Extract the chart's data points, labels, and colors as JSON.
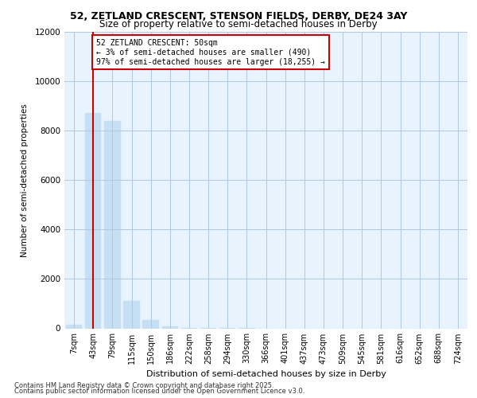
{
  "title1": "52, ZETLAND CRESCENT, STENSON FIELDS, DERBY, DE24 3AY",
  "title2": "Size of property relative to semi-detached houses in Derby",
  "xlabel": "Distribution of semi-detached houses by size in Derby",
  "ylabel": "Number of semi-detached properties",
  "annotation_title": "52 ZETLAND CRESCENT: 50sqm",
  "annotation_line1": "← 3% of semi-detached houses are smaller (490)",
  "annotation_line2": "97% of semi-detached houses are larger (18,255) →",
  "categories": [
    "7sqm",
    "43sqm",
    "79sqm",
    "115sqm",
    "150sqm",
    "186sqm",
    "222sqm",
    "258sqm",
    "294sqm",
    "330sqm",
    "366sqm",
    "401sqm",
    "437sqm",
    "473sqm",
    "509sqm",
    "545sqm",
    "581sqm",
    "616sqm",
    "652sqm",
    "688sqm",
    "724sqm"
  ],
  "values": [
    150,
    8700,
    8400,
    1100,
    350,
    80,
    20,
    5,
    2,
    1,
    0,
    0,
    0,
    0,
    0,
    0,
    0,
    0,
    0,
    0,
    0
  ],
  "bar_color": "#c5dff5",
  "vline_color": "#cc0000",
  "vline_position": 1,
  "plot_bg": "#e8f4fd",
  "grid_color": "#b0c8e0",
  "footer1": "Contains HM Land Registry data © Crown copyright and database right 2025.",
  "footer2": "Contains public sector information licensed under the Open Government Licence v3.0.",
  "ylim": [
    0,
    12000
  ],
  "yticks": [
    0,
    2000,
    4000,
    6000,
    8000,
    10000,
    12000
  ]
}
